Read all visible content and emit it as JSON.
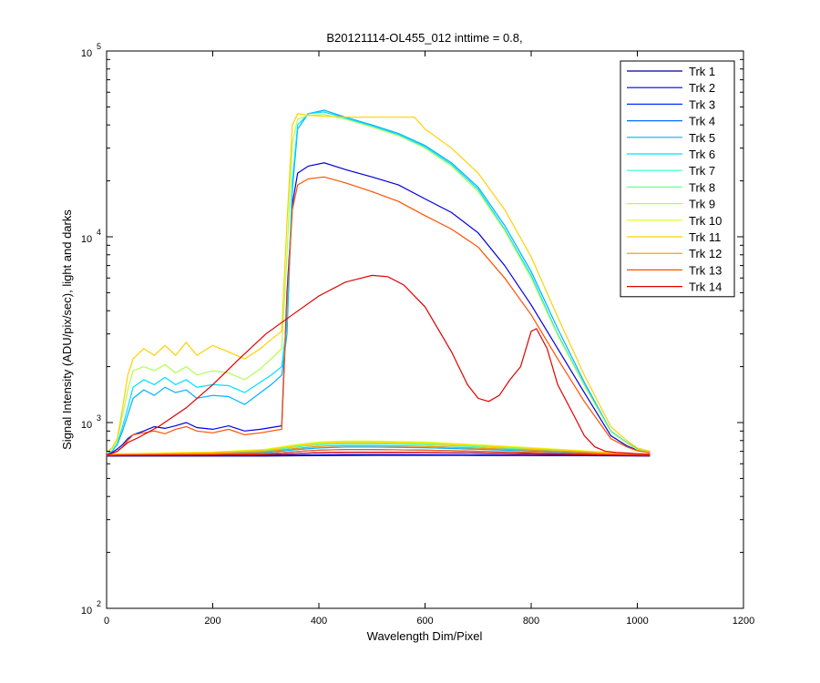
{
  "chart_data": {
    "type": "line",
    "title": "B20121114-OL455_012 inttime = 0.8,",
    "xlabel": "Wavelength Dim/Pixel",
    "ylabel": "Signal Intensity (ADU/pix/sec), light and darks",
    "xlim": [
      0,
      1200
    ],
    "ylim": [
      100,
      100000
    ],
    "yscale": "log",
    "grid": false,
    "legend_position": "top-right",
    "x_ticks": [
      "0",
      "200",
      "400",
      "600",
      "800",
      "1000",
      "1200"
    ],
    "y_ticks": [
      {
        "base": "10",
        "exp": "2"
      },
      {
        "base": "10",
        "exp": "3"
      },
      {
        "base": "10",
        "exp": "4"
      },
      {
        "base": "10",
        "exp": "5"
      }
    ],
    "series": [
      {
        "name": "Trk 1",
        "color": "#00008F",
        "x": [
          0,
          20,
          200,
          300,
          350,
          400,
          450,
          500,
          600,
          700,
          800,
          900,
          950,
          1024
        ],
        "y": [
          660,
          660,
          660,
          660,
          662,
          664,
          665,
          666,
          666,
          665,
          664,
          663,
          662,
          660
        ]
      },
      {
        "name": "Trk 2",
        "color": "#0000DF",
        "x": [
          0,
          20,
          200,
          300,
          350,
          400,
          450,
          500,
          600,
          700,
          800,
          900,
          950,
          1024
        ],
        "y": [
          660,
          662,
          663,
          665,
          668,
          670,
          672,
          672,
          671,
          669,
          667,
          665,
          664,
          662
        ]
      },
      {
        "name": "Trk 3",
        "color": "#0030FF",
        "x": [
          0,
          20,
          200,
          300,
          350,
          400,
          450,
          500,
          600,
          700,
          800,
          900,
          950,
          1024
        ],
        "y": [
          662,
          665,
          668,
          672,
          680,
          688,
          692,
          692,
          690,
          685,
          678,
          672,
          668,
          664
        ]
      },
      {
        "name": "Trk 4",
        "color": "#0070FF",
        "x": [
          0,
          20,
          200,
          300,
          350,
          400,
          450,
          500,
          600,
          700,
          800,
          900,
          950,
          1024
        ],
        "y": [
          663,
          668,
          672,
          680,
          695,
          710,
          715,
          715,
          710,
          700,
          690,
          680,
          672,
          666
        ]
      },
      {
        "name": "Trk 5",
        "color": "#00B0FF",
        "x": [
          0,
          20,
          200,
          300,
          350,
          400,
          450,
          500,
          600,
          700,
          800,
          900,
          950,
          1024
        ],
        "y": [
          664,
          670,
          678,
          690,
          712,
          730,
          738,
          738,
          732,
          718,
          702,
          688,
          678,
          668
        ]
      },
      {
        "name": "Trk 6",
        "color": "#00E0FF",
        "x": [
          0,
          20,
          200,
          300,
          350,
          400,
          450,
          500,
          600,
          700,
          800,
          900,
          950,
          1024
        ],
        "y": [
          665,
          672,
          682,
          698,
          722,
          745,
          752,
          752,
          745,
          728,
          710,
          692,
          680,
          670
        ]
      },
      {
        "name": "Trk 7",
        "color": "#30FFCF",
        "x": [
          0,
          20,
          200,
          300,
          350,
          400,
          450,
          500,
          600,
          700,
          800,
          900,
          950,
          1024
        ],
        "y": [
          666,
          674,
          686,
          705,
          735,
          760,
          768,
          768,
          760,
          740,
          718,
          696,
          683,
          672
        ]
      },
      {
        "name": "Trk 8",
        "color": "#70FF8F",
        "x": [
          0,
          20,
          200,
          300,
          350,
          400,
          450,
          500,
          600,
          700,
          800,
          900,
          950,
          1024
        ],
        "y": [
          667,
          676,
          690,
          712,
          745,
          772,
          780,
          780,
          772,
          750,
          725,
          700,
          686,
          674
        ]
      },
      {
        "name": "Trk 9",
        "color": "#B0FF4F",
        "x": [
          0,
          20,
          200,
          300,
          350,
          400,
          450,
          500,
          600,
          700,
          800,
          900,
          950,
          1024
        ],
        "y": [
          667,
          677,
          692,
          716,
          752,
          780,
          790,
          790,
          780,
          757,
          730,
          702,
          688,
          675
        ]
      },
      {
        "name": "Trk 10",
        "color": "#E0FF10",
        "x": [
          0,
          20,
          200,
          300,
          350,
          400,
          450,
          500,
          600,
          700,
          800,
          900,
          950,
          1024
        ],
        "y": [
          668,
          678,
          694,
          718,
          755,
          785,
          795,
          795,
          785,
          760,
          732,
          704,
          690,
          676
        ]
      },
      {
        "name": "Trk 11",
        "color": "#FFD000",
        "x": [
          0,
          20,
          200,
          300,
          350,
          400,
          450,
          500,
          600,
          700,
          800,
          900,
          950,
          1024
        ],
        "y": [
          667,
          676,
          690,
          712,
          745,
          772,
          780,
          780,
          772,
          750,
          725,
          700,
          686,
          674
        ]
      },
      {
        "name": "Trk 12",
        "color": "#FF9000",
        "x": [
          0,
          20,
          200,
          300,
          350,
          400,
          450,
          500,
          600,
          700,
          800,
          900,
          950,
          1024
        ],
        "y": [
          665,
          672,
          682,
          698,
          722,
          745,
          752,
          752,
          745,
          728,
          710,
          692,
          680,
          670
        ]
      },
      {
        "name": "Trk 13",
        "color": "#FF5000",
        "x": [
          0,
          20,
          200,
          300,
          350,
          400,
          450,
          500,
          600,
          700,
          800,
          900,
          950,
          1024
        ],
        "y": [
          663,
          668,
          672,
          680,
          695,
          710,
          715,
          715,
          710,
          700,
          690,
          680,
          672,
          666
        ]
      },
      {
        "name": "Trk 14",
        "color": "#DF0000",
        "x": [
          0,
          20,
          200,
          300,
          350,
          400,
          450,
          500,
          600,
          700,
          800,
          900,
          950,
          1024
        ],
        "y": [
          662,
          665,
          668,
          672,
          680,
          688,
          692,
          692,
          690,
          685,
          678,
          672,
          668,
          664
        ]
      },
      {
        "name": "Trk 2",
        "color": "#0000DF",
        "x": [
          0,
          10,
          20,
          30,
          40,
          50,
          70,
          90,
          110,
          130,
          150,
          170,
          200,
          230,
          260,
          290,
          310,
          330,
          340,
          350,
          360,
          380,
          410,
          450,
          500,
          550,
          600,
          650,
          700,
          750,
          800,
          850,
          900,
          950,
          980,
          1000,
          1024
        ],
        "y": [
          680,
          690,
          720,
          760,
          820,
          860,
          900,
          950,
          930,
          960,
          1000,
          940,
          920,
          960,
          900,
          920,
          940,
          960,
          5000,
          15000,
          22000,
          24000,
          25000,
          23000,
          21000,
          19000,
          16000,
          13500,
          10500,
          7000,
          4300,
          2500,
          1450,
          850,
          750,
          710,
          690
        ]
      },
      {
        "name": "Trk 5",
        "color": "#00B0FF",
        "x": [
          0,
          10,
          20,
          30,
          40,
          50,
          70,
          90,
          110,
          130,
          150,
          170,
          200,
          230,
          260,
          290,
          310,
          330,
          340,
          350,
          360,
          380,
          410,
          450,
          500,
          550,
          600,
          650,
          700,
          750,
          800,
          850,
          900,
          950,
          980,
          1000,
          1024
        ],
        "y": [
          680,
          700,
          760,
          900,
          1100,
          1350,
          1500,
          1400,
          1550,
          1450,
          1500,
          1350,
          1400,
          1380,
          1250,
          1450,
          1600,
          1800,
          3000,
          18000,
          38000,
          46000,
          48000,
          44000,
          40000,
          36000,
          31000,
          25000,
          18500,
          11500,
          6500,
          3200,
          1650,
          900,
          780,
          720,
          700
        ]
      },
      {
        "name": "Trk 6",
        "color": "#00E0FF",
        "x": [
          0,
          10,
          20,
          30,
          40,
          50,
          70,
          90,
          110,
          130,
          150,
          170,
          200,
          230,
          260,
          290,
          310,
          330,
          340,
          350,
          360,
          380,
          410,
          450,
          500,
          550,
          600,
          650,
          700,
          750,
          800,
          850,
          900,
          950,
          980,
          1000,
          1024
        ],
        "y": [
          680,
          700,
          770,
          950,
          1200,
          1550,
          1700,
          1600,
          1750,
          1600,
          1700,
          1550,
          1600,
          1580,
          1450,
          1650,
          1800,
          2000,
          3500,
          20000,
          40000,
          46000,
          47000,
          43500,
          39500,
          35500,
          30500,
          24500,
          18000,
          11000,
          6200,
          3000,
          1600,
          900,
          780,
          720,
          700
        ]
      },
      {
        "name": "Trk 9",
        "color": "#B0FF4F",
        "x": [
          0,
          10,
          20,
          30,
          40,
          50,
          70,
          90,
          110,
          130,
          150,
          170,
          200,
          230,
          260,
          290,
          310,
          330,
          340,
          350,
          360,
          380,
          410,
          450,
          500,
          550,
          600,
          650,
          700,
          750,
          800,
          850,
          900,
          950,
          980,
          1000,
          1024
        ],
        "y": [
          690,
          720,
          800,
          1100,
          1500,
          1900,
          2000,
          1900,
          2050,
          1850,
          2000,
          1800,
          1900,
          1850,
          1700,
          1950,
          2200,
          2500,
          8000,
          32000,
          43000,
          45000,
          45500,
          43000,
          39000,
          35000,
          30000,
          24000,
          17500,
          10800,
          6000,
          2950,
          1580,
          890,
          775,
          715,
          695
        ]
      },
      {
        "name": "Trk 11",
        "color": "#FFD000",
        "x": [
          0,
          10,
          20,
          30,
          40,
          50,
          70,
          90,
          110,
          130,
          150,
          170,
          200,
          230,
          260,
          290,
          310,
          330,
          340,
          350,
          360,
          380,
          410,
          450,
          500,
          550,
          580,
          600,
          650,
          700,
          750,
          800,
          850,
          900,
          950,
          980,
          1000,
          1024
        ],
        "y": [
          690,
          730,
          820,
          1200,
          1800,
          2200,
          2500,
          2300,
          2600,
          2300,
          2700,
          2300,
          2600,
          2400,
          2200,
          2500,
          2800,
          3100,
          12000,
          40000,
          46000,
          45000,
          44500,
          44000,
          44000,
          44000,
          44000,
          38000,
          30000,
          22000,
          14000,
          7800,
          3700,
          1800,
          950,
          800,
          730,
          700
        ]
      },
      {
        "name": "Trk 13",
        "color": "#FF5000",
        "x": [
          0,
          10,
          20,
          30,
          40,
          50,
          70,
          90,
          110,
          130,
          150,
          170,
          200,
          230,
          260,
          290,
          310,
          330,
          340,
          350,
          360,
          380,
          410,
          450,
          500,
          550,
          600,
          650,
          700,
          750,
          800,
          850,
          900,
          950,
          980,
          1000,
          1024
        ],
        "y": [
          675,
          680,
          700,
          740,
          800,
          860,
          880,
          900,
          870,
          920,
          950,
          900,
          880,
          920,
          860,
          880,
          900,
          920,
          4500,
          14000,
          19000,
          20500,
          21000,
          19500,
          17500,
          15500,
          13000,
          11000,
          8800,
          6000,
          3800,
          2200,
          1300,
          820,
          740,
          705,
          688
        ]
      },
      {
        "name": "Trk 14",
        "color": "#DF0000",
        "x": [
          0,
          20,
          40,
          60,
          100,
          150,
          200,
          250,
          300,
          350,
          400,
          450,
          500,
          530,
          560,
          600,
          650,
          680,
          700,
          720,
          740,
          760,
          780,
          800,
          810,
          830,
          850,
          880,
          900,
          920,
          940,
          960,
          980,
          1000,
          1024
        ],
        "y": [
          665,
          700,
          780,
          830,
          960,
          1200,
          1600,
          2200,
          3000,
          3800,
          4800,
          5700,
          6200,
          6100,
          5500,
          4200,
          2400,
          1600,
          1350,
          1300,
          1400,
          1700,
          2000,
          3100,
          3200,
          2500,
          1600,
          1100,
          850,
          740,
          700,
          690,
          685,
          680,
          675
        ]
      }
    ]
  }
}
